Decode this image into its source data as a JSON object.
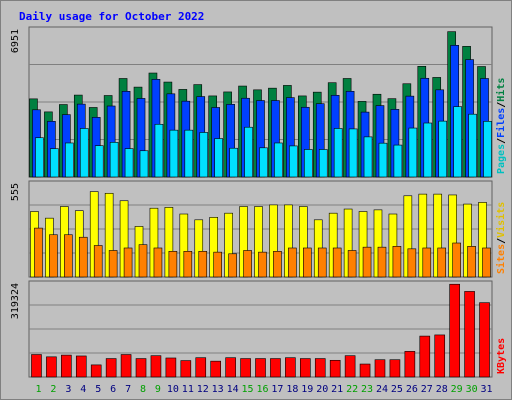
{
  "chart_data": {
    "type": "bar",
    "title": "Daily usage for October 2022",
    "categories": [
      "1",
      "2",
      "3",
      "4",
      "5",
      "6",
      "7",
      "8",
      "9",
      "10",
      "11",
      "12",
      "13",
      "14",
      "15",
      "16",
      "17",
      "18",
      "19",
      "20",
      "21",
      "22",
      "23",
      "24",
      "25",
      "26",
      "27",
      "28",
      "29",
      "30",
      "31"
    ],
    "weekend_days": [
      "1",
      "2",
      "8",
      "9",
      "15",
      "16",
      "22",
      "23",
      "29",
      "30"
    ],
    "panels": [
      {
        "id": "pages-files-hits",
        "max_label": "6951",
        "ymax": 6951,
        "series": [
          {
            "name": "Hits",
            "color": "#008040",
            "values": [
              3720,
              3100,
              3450,
              3900,
              3310,
              3880,
              4690,
              4280,
              4950,
              4520,
              4170,
              4400,
              3860,
              4050,
              4330,
              4150,
              4230,
              4360,
              3860,
              4040,
              4490,
              4690,
              3600,
              3940,
              3730,
              4440,
              5270,
              4740,
              6920,
              6220,
              5260
            ]
          },
          {
            "name": "Files",
            "color": "#0040ff",
            "values": [
              3200,
              2650,
              2970,
              3470,
              2840,
              3380,
              4080,
              3740,
              4650,
              3960,
              3610,
              3830,
              3310,
              3460,
              3750,
              3640,
              3640,
              3780,
              3320,
              3490,
              3890,
              4080,
              3090,
              3400,
              3220,
              3850,
              4700,
              4150,
              6270,
              5590,
              4690
            ]
          },
          {
            "name": "Pages",
            "color": "#00e0ff",
            "values": [
              1870,
              1350,
              1620,
              2310,
              1490,
              1650,
              1350,
              1250,
              2510,
              2230,
              2230,
              2120,
              1830,
              1370,
              2370,
              1390,
              1620,
              1480,
              1310,
              1310,
              2310,
              2290,
              1910,
              1610,
              1520,
              2330,
              2570,
              2660,
              3350,
              2990,
              2650
            ]
          }
        ]
      },
      {
        "id": "sites-visits",
        "max_label": "555",
        "ymax": 555,
        "series": [
          {
            "name": "Visits",
            "color": "#ffff00",
            "values": [
              395,
              355,
              425,
              400,
              515,
              505,
              460,
              305,
              415,
              420,
              380,
              345,
              360,
              385,
              425,
              425,
              435,
              435,
              425,
              345,
              385,
              410,
              395,
              405,
              380,
              490,
              500,
              500,
              495,
              440,
              450
            ]
          },
          {
            "name": "Sites",
            "color": "#ff8000",
            "values": [
              295,
              255,
              255,
              240,
              190,
              160,
              175,
              195,
              175,
              155,
              155,
              155,
              150,
              140,
              160,
              150,
              155,
              175,
              175,
              175,
              175,
              160,
              180,
              180,
              185,
              170,
              175,
              175,
              205,
              185,
              175
            ]
          }
        ]
      },
      {
        "id": "kbytes",
        "max_label": "319324",
        "ymax": 319324,
        "series": [
          {
            "name": "KBytes",
            "color": "#ff0000",
            "values": [
              78000,
              70000,
              76000,
              73000,
              42000,
              64000,
              78000,
              64000,
              74000,
              66000,
              57000,
              67000,
              55000,
              67000,
              64000,
              64000,
              64000,
              67000,
              64000,
              64000,
              58000,
              74000,
              45000,
              60000,
              60000,
              89000,
              142000,
              146000,
              322000,
              297000,
              258000
            ]
          }
        ]
      }
    ],
    "legend": {
      "panel1": [
        {
          "text": "Pages",
          "color": "#00c0c0"
        },
        {
          "text": "/",
          "color": "#000000"
        },
        {
          "text": "Files",
          "color": "#0040ff"
        },
        {
          "text": "/",
          "color": "#000000"
        },
        {
          "text": "Hits",
          "color": "#008040"
        }
      ],
      "panel2": [
        {
          "text": "Sites",
          "color": "#ff8000"
        },
        {
          "text": "/",
          "color": "#000000"
        },
        {
          "text": "Visits",
          "color": "#e0c000"
        }
      ],
      "panel3": [
        {
          "text": "KBytes",
          "color": "#ff0000"
        }
      ]
    },
    "colors": {
      "title": "#0000ff",
      "weekday_label": "#000080",
      "weekend_label": "#00a000",
      "plot_bg": "#c0c0c0",
      "grid": "#808080"
    }
  }
}
